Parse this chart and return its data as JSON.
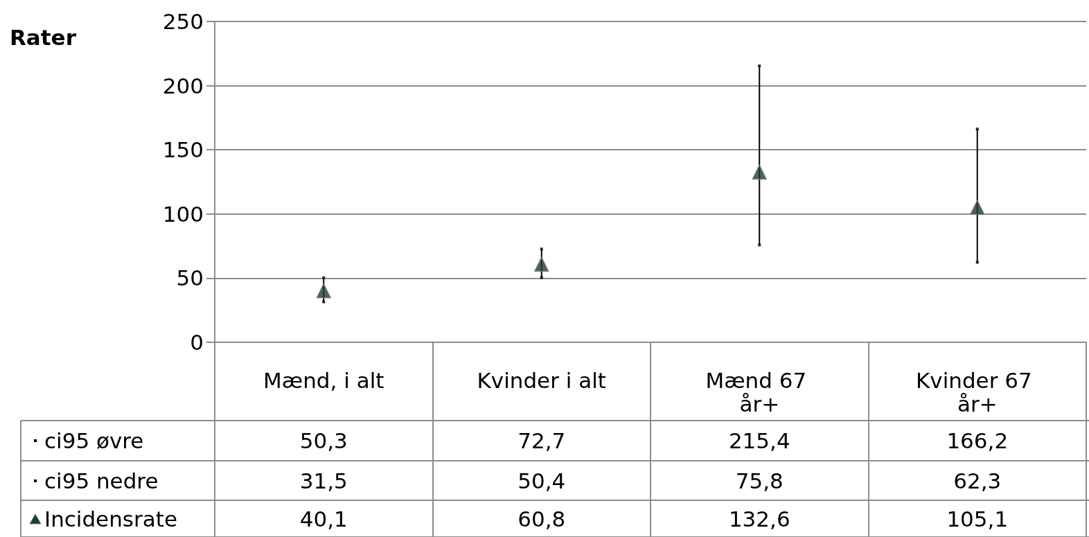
{
  "chart_data": {
    "type": "scatter",
    "ylabel": "Rater",
    "categories": [
      "Mænd, i alt",
      "Kvinder i alt",
      "Mænd 67 år+",
      "Kvinder 67 år+"
    ],
    "series": [
      {
        "name": "ci95 øvre",
        "marker": "square",
        "color": "#000000",
        "values": [
          50.3,
          72.7,
          215.4,
          166.2
        ],
        "value_labels": [
          "50,3",
          "72,7",
          "215,4",
          "166,2"
        ]
      },
      {
        "name": "ci95 nedre",
        "marker": "square",
        "color": "#000000",
        "values": [
          31.5,
          50.4,
          75.8,
          62.3
        ],
        "value_labels": [
          "31,5",
          "50,4",
          "75,8",
          "62,3"
        ]
      },
      {
        "name": "Incidensrate",
        "marker": "triangle",
        "color": "#1e3b36",
        "values": [
          40.1,
          60.8,
          132.6,
          105.1
        ],
        "value_labels": [
          "40,1",
          "60,8",
          "132,6",
          "105,1"
        ]
      }
    ],
    "ylim": [
      0,
      250
    ],
    "yticks": [
      0,
      50,
      100,
      150,
      200,
      250
    ],
    "grid": "y",
    "legend": "bottom"
  }
}
